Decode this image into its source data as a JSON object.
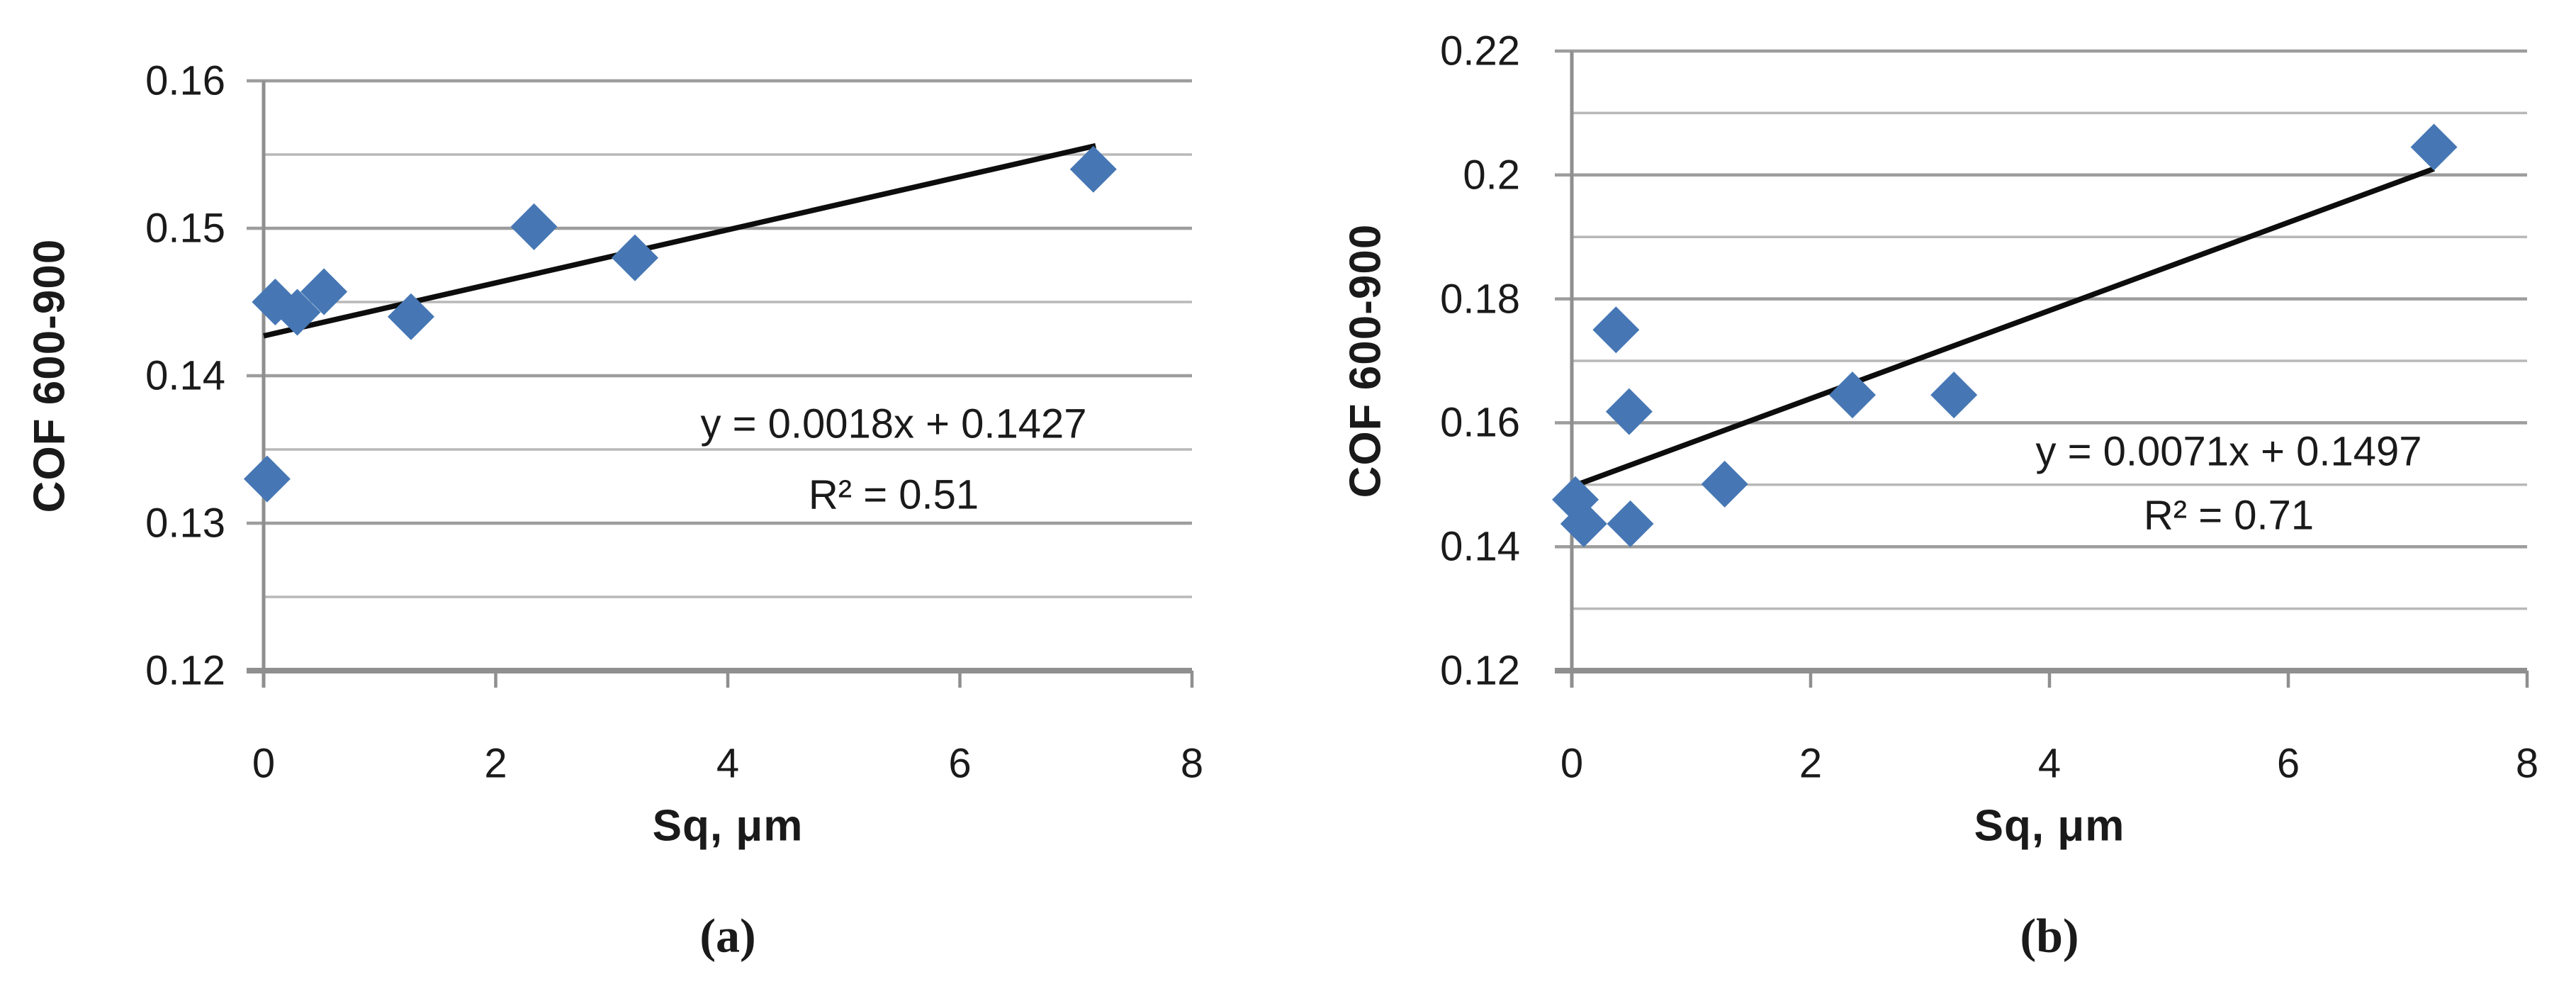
{
  "figure": {
    "background": "#ffffff",
    "description": "Two Excel-style scatter plots of coefficient of friction vs surface roughness with linear trendlines"
  },
  "colors": {
    "marker_blue": "#4677B4",
    "gridline_major": "#9d9d9d",
    "gridline_minor": "#b8b8b8",
    "axis_gray": "#8f8f8f",
    "trendline_black": "#0d0d0d",
    "text": "#1a1a1a"
  },
  "chart_data": [
    {
      "id": "a",
      "type": "scatter",
      "panel_label": "(a)",
      "xlabel": "Sq, μm",
      "ylabel": "COF 600-900",
      "xlim": [
        0,
        8
      ],
      "ylim": [
        0.12,
        0.16
      ],
      "grid": "on",
      "legend": "none",
      "x_ticks": [
        {
          "v": 0,
          "label": "0"
        },
        {
          "v": 2,
          "label": "2"
        },
        {
          "v": 4,
          "label": "4"
        },
        {
          "v": 6,
          "label": "6"
        },
        {
          "v": 8,
          "label": "8"
        }
      ],
      "y_ticks": [
        {
          "v": 0.16,
          "label": "0.16"
        },
        {
          "v": 0.15,
          "label": "0.15"
        },
        {
          "v": 0.14,
          "label": "0.14"
        },
        {
          "v": 0.13,
          "label": "0.13"
        },
        {
          "v": 0.12,
          "label": "0.12"
        }
      ],
      "y_minor_gridlines": [
        0.155,
        0.145,
        0.135,
        0.125
      ],
      "points": [
        [
          0.1,
          0.145
        ],
        [
          0.29,
          0.1443
        ],
        [
          0.52,
          0.1457
        ],
        [
          1.27,
          0.144
        ],
        [
          2.33,
          0.1501
        ],
        [
          3.2,
          0.148
        ],
        [
          7.15,
          0.154
        ],
        [
          0.03,
          0.133
        ]
      ],
      "trendline": {
        "x1": 0,
        "y1": 0.1427,
        "x2": 7.17,
        "y2": 0.1556,
        "equation": "y = 0.0018x + 0.1427",
        "r2": "R² = 0.51"
      }
    },
    {
      "id": "b",
      "type": "scatter",
      "panel_label": "(b)",
      "xlabel": "Sq, μm",
      "ylabel": "COF 600-900",
      "xlim": [
        0,
        8
      ],
      "ylim": [
        0.12,
        0.22
      ],
      "grid": "on",
      "legend": "none",
      "x_ticks": [
        {
          "v": 0,
          "label": "0"
        },
        {
          "v": 2,
          "label": "2"
        },
        {
          "v": 4,
          "label": "4"
        },
        {
          "v": 6,
          "label": "6"
        },
        {
          "v": 8,
          "label": "8"
        }
      ],
      "y_ticks": [
        {
          "v": 0.22,
          "label": "0.22"
        },
        {
          "v": 0.2,
          "label": "0.2"
        },
        {
          "v": 0.18,
          "label": "0.18"
        },
        {
          "v": 0.16,
          "label": "0.16"
        },
        {
          "v": 0.14,
          "label": "0.14"
        },
        {
          "v": 0.12,
          "label": "0.12"
        }
      ],
      "y_minor_gridlines": [
        0.21,
        0.19,
        0.17,
        0.15,
        0.13
      ],
      "points": [
        [
          0.03,
          0.1476
        ],
        [
          0.1,
          0.1437
        ],
        [
          0.49,
          0.1437
        ],
        [
          0.37,
          0.175
        ],
        [
          0.48,
          0.1618
        ],
        [
          1.28,
          0.1501
        ],
        [
          2.35,
          0.1645
        ],
        [
          3.2,
          0.1645
        ],
        [
          7.22,
          0.2045
        ]
      ],
      "trendline": {
        "x1": 0,
        "y1": 0.1497,
        "x2": 7.22,
        "y2": 0.201,
        "equation": "y = 0.0071x + 0.1497",
        "r2": "R² = 0.71"
      }
    }
  ]
}
